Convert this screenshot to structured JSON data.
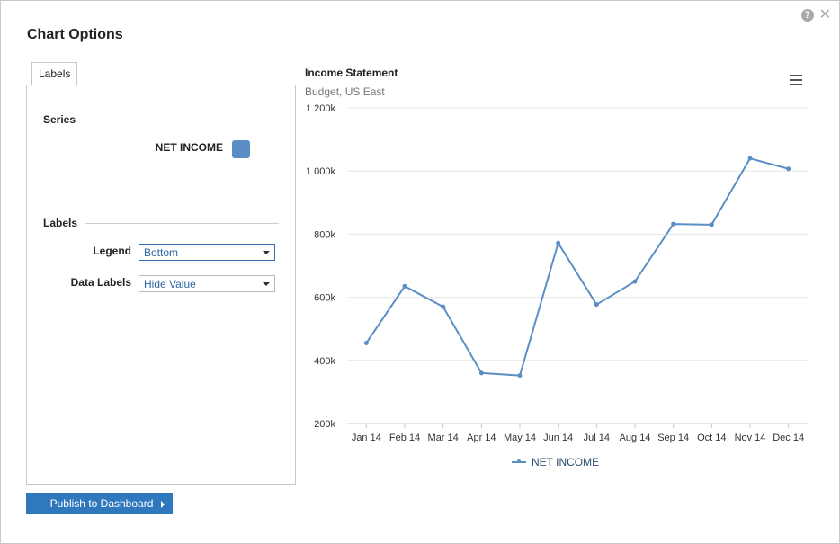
{
  "dialog": {
    "title": "Chart Options"
  },
  "icons": {
    "help": "?",
    "close": "✕"
  },
  "tabs": [
    {
      "label": "Labels"
    }
  ],
  "series_section": {
    "heading": "Series",
    "series": [
      {
        "name": "NET INCOME",
        "color": "#5b8ec6"
      }
    ]
  },
  "labels_section": {
    "heading": "Labels",
    "legend": {
      "label": "Legend",
      "value": "Bottom"
    },
    "data_labels": {
      "label": "Data Labels",
      "value": "Hide Value"
    }
  },
  "publish_button": {
    "label": "Publish to Dashboard"
  },
  "chart_data": {
    "type": "line",
    "title": "Income Statement",
    "subtitle": "Budget, US East",
    "xlabel": "",
    "ylabel": "",
    "categories": [
      "Jan 14",
      "Feb 14",
      "Mar 14",
      "Apr 14",
      "May 14",
      "Jun 14",
      "Jul 14",
      "Aug 14",
      "Sep 14",
      "Oct 14",
      "Nov 14",
      "Dec 14"
    ],
    "series": [
      {
        "name": "NET INCOME",
        "color": "#5b8ec6",
        "values": [
          455000,
          635000,
          570000,
          360000,
          352000,
          772000,
          577000,
          650000,
          832000,
          830000,
          1040000,
          1007000
        ]
      }
    ],
    "ylim": [
      200000,
      1200000
    ],
    "yticks": [
      200000,
      400000,
      600000,
      800000,
      1000000,
      1200000
    ],
    "ytick_labels": [
      "200k",
      "400k",
      "600k",
      "800k",
      "1 000k",
      "1 200k"
    ],
    "grid": true,
    "legend_position": "bottom"
  }
}
